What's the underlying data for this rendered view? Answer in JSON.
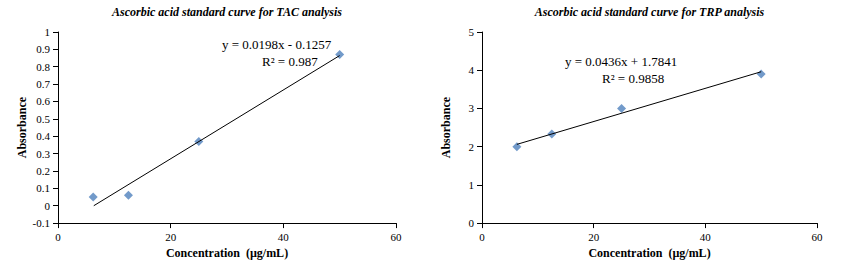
{
  "chart_data": [
    {
      "type": "scatter",
      "title": "Ascorbic acid standard curve for TAC analysis",
      "x_label": "Concentration  (µg/mL)",
      "y_label": "Absorbance",
      "x": [
        6.25,
        12.5,
        25,
        50
      ],
      "series": [
        {
          "type": "scatter",
          "color": "#4f81bd",
          "marker": "diamond",
          "values": [
            0.05,
            0.06,
            0.37,
            0.87
          ]
        },
        {
          "type": "line",
          "color": "#000000",
          "line_style": "solid",
          "x": [
            6.35,
            50
          ],
          "values": [
            0,
            0.8643
          ]
        }
      ],
      "annotations": [
        "y = 0.0198x - 0.1257",
        "R² = 0.987"
      ],
      "xlim": [
        0,
        60
      ],
      "xticks": [
        0,
        20,
        40,
        60
      ],
      "ylim": [
        -0.1,
        1
      ],
      "yticks": [
        -0.1,
        0,
        0.1,
        0.2,
        0.3,
        0.4,
        0.5,
        0.6,
        0.7,
        0.8,
        0.9,
        1
      ],
      "grid": false
    },
    {
      "type": "scatter",
      "title": "Ascorbic acid standard curve for TRP analysis",
      "x_label": "Concentration  (µg/mL)",
      "y_label": "Absorbance",
      "x": [
        6.25,
        12.5,
        25,
        50
      ],
      "series": [
        {
          "type": "scatter",
          "color": "#4f81bd",
          "marker": "diamond",
          "values": [
            2.0,
            2.33,
            3.0,
            3.9
          ]
        },
        {
          "type": "line",
          "color": "#000000",
          "line_style": "solid",
          "x": [
            6.25,
            50
          ],
          "values": [
            2.06,
            3.96
          ]
        }
      ],
      "annotations": [
        "y = 0.0436x + 1.7841",
        "R² = 0.9858"
      ],
      "xlim": [
        0,
        60
      ],
      "xticks": [
        0,
        20,
        40,
        60
      ],
      "ylim": [
        0,
        5
      ],
      "yticks": [
        0,
        1,
        2,
        3,
        4,
        5
      ],
      "grid": false
    }
  ]
}
